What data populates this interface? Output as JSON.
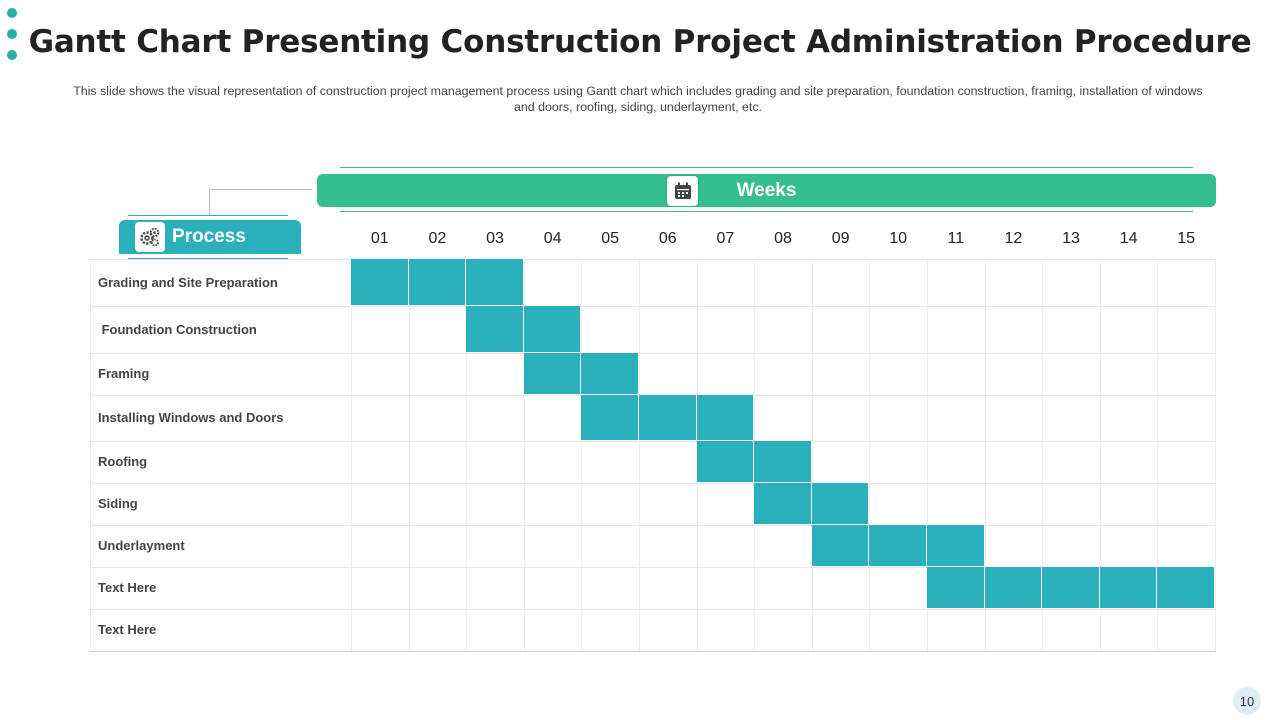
{
  "title": "Gantt Chart Presenting Construction Project Administration Procedure",
  "subtitle": "This slide shows the visual representation of construction project management process using Gantt chart which includes grading and site preparation, foundation construction, framing, installation of windows and doors, roofing, siding, underlayment, etc.",
  "page_number": "10",
  "colors": {
    "accent_green": "#36bf8c",
    "accent_teal": "#2bafbb",
    "bar_fill": "#2bafbb",
    "dot": "#2bafa0"
  },
  "icons": {
    "weeks": "calendar-icon",
    "process": "gears-icon"
  },
  "chart_data": {
    "type": "gantt",
    "header_weeks": "Weeks",
    "header_process": "Process",
    "categories": [
      "01",
      "02",
      "03",
      "04",
      "05",
      "06",
      "07",
      "08",
      "09",
      "10",
      "11",
      "12",
      "13",
      "14",
      "15"
    ],
    "tasks": [
      {
        "name": "Grading and Site Preparation",
        "start": 1,
        "end": 3
      },
      {
        "name": " Foundation Construction",
        "start": 3,
        "end": 4
      },
      {
        "name": "Framing",
        "start": 4,
        "end": 5
      },
      {
        "name": "Installing Windows and Doors",
        "start": 5,
        "end": 7
      },
      {
        "name": "Roofing",
        "start": 7,
        "end": 8
      },
      {
        "name": "Siding",
        "start": 8,
        "end": 9
      },
      {
        "name": "Underlayment",
        "start": 9,
        "end": 11
      },
      {
        "name": "Text Here",
        "start": 11,
        "end": 15
      },
      {
        "name": "Text Here",
        "start": null,
        "end": null
      }
    ]
  }
}
